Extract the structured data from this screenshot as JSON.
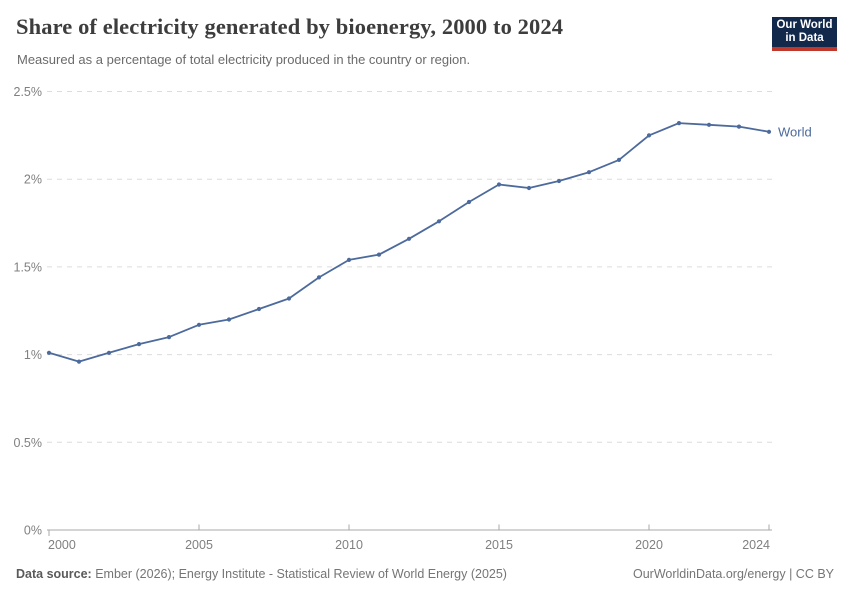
{
  "header": {
    "title": "Share of electricity generated by bioenergy, 2000 to 2024",
    "subtitle": "Measured as a percentage of total electricity produced in the country or region.",
    "logo": {
      "line1": "Our World",
      "line2": "in Data"
    }
  },
  "chart_data": {
    "type": "line",
    "title": "Share of electricity generated by bioenergy, 2000 to 2024",
    "x": [
      2000,
      2001,
      2002,
      2003,
      2004,
      2005,
      2006,
      2007,
      2008,
      2009,
      2010,
      2011,
      2012,
      2013,
      2014,
      2015,
      2016,
      2017,
      2018,
      2019,
      2020,
      2021,
      2022,
      2023,
      2024
    ],
    "series": [
      {
        "name": "World",
        "color": "#4C6A9C",
        "values": [
          1.01,
          0.96,
          1.01,
          1.06,
          1.1,
          1.17,
          1.2,
          1.26,
          1.32,
          1.44,
          1.54,
          1.57,
          1.66,
          1.76,
          1.87,
          1.97,
          1.95,
          1.99,
          2.04,
          2.11,
          2.25,
          2.32,
          2.31,
          2.3,
          2.27
        ]
      }
    ],
    "x_ticks": [
      2000,
      2005,
      2010,
      2015,
      2020,
      2024
    ],
    "y_ticks": [
      {
        "value": 0,
        "label": "0%"
      },
      {
        "value": 0.5,
        "label": "0.5%"
      },
      {
        "value": 1,
        "label": "1%"
      },
      {
        "value": 1.5,
        "label": "1.5%"
      },
      {
        "value": 2,
        "label": "2%"
      },
      {
        "value": 2.5,
        "label": "2.5%"
      }
    ],
    "xlim": [
      2000,
      2024
    ],
    "ylim": [
      0,
      2.5
    ],
    "grid": true,
    "legend_position": "end-of-line"
  },
  "footer": {
    "source_label": "Data source:",
    "source_text": "Ember (2026); Energy Institute - Statistical Review of World Energy (2025)",
    "link": "OurWorldinData.org/energy | CC BY"
  },
  "colors": {
    "line": "#4C6A9C",
    "grid": "#dcdcdc",
    "axis": "#a8a8a8",
    "tick_text": "#808080",
    "logo_bg": "#12294b",
    "logo_accent": "#c0372c"
  }
}
